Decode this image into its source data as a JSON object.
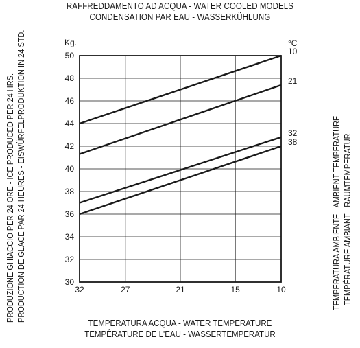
{
  "chart_data": {
    "type": "line",
    "title": "RAFFREDDAMENTO AD ACQUA - WATER COOLED MODELS",
    "subtitle": "CONDENSATION PAR EAU - WASSERKÜHLUNG",
    "xlabel": [
      "TEMPERATURA ACQUA - WATER TEMPERATURE",
      "TEMPÉRATURE DE L'EAU - WASSERTEMPERATUR"
    ],
    "ylabel": [
      "PRODUZIONE GHIACCIO PER 24 ORE - ICE PRODUCED PER 24 HRS.",
      "PRODUCTION DE GLACE PAR 24 HEURES - EISWÜRFELPRODUKTION IN 24 STD."
    ],
    "right_label": [
      "TEMPERATURA AMBIENTE - AMBIENT TEMPERATURE",
      "TEMPÉRATURE AMBIANT - RAUMTEMPERATUR"
    ],
    "y_unit": "Kg.",
    "series_unit": "°C",
    "x_ticks": [
      "32",
      "27",
      "21",
      "15",
      "10"
    ],
    "x_reversed": true,
    "xlim": [
      32,
      10
    ],
    "ylim": [
      30,
      50
    ],
    "y_ticks": [
      "30",
      "32",
      "34",
      "36",
      "38",
      "40",
      "42",
      "44",
      "46",
      "48",
      "50"
    ],
    "grid": true,
    "series": [
      {
        "name": "10",
        "x": [
          32,
          10
        ],
        "y": [
          44,
          50
        ]
      },
      {
        "name": "21",
        "x": [
          32,
          10
        ],
        "y": [
          41.3,
          47.4
        ]
      },
      {
        "name": "32",
        "x": [
          32,
          10
        ],
        "y": [
          37,
          42.8
        ]
      },
      {
        "name": "38",
        "x": [
          32,
          10
        ],
        "y": [
          36,
          42
        ]
      }
    ]
  }
}
